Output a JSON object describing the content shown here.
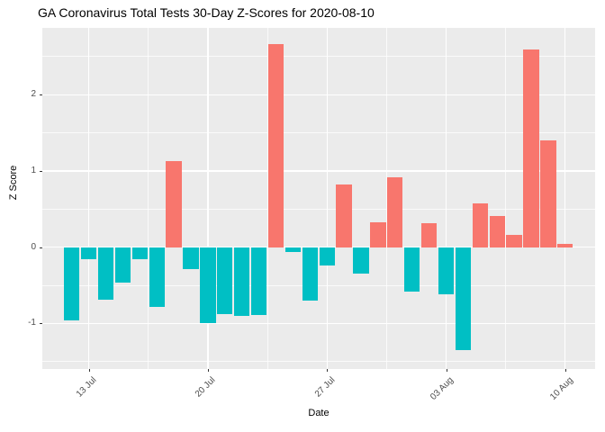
{
  "chart_data": {
    "type": "bar",
    "title": "GA Coronavirus Total Tests 30-Day Z-Scores for 2020-08-10",
    "xlabel": "Date",
    "ylabel": "Z Score",
    "x": [
      "2020-07-12",
      "2020-07-13",
      "2020-07-14",
      "2020-07-15",
      "2020-07-16",
      "2020-07-17",
      "2020-07-18",
      "2020-07-19",
      "2020-07-20",
      "2020-07-21",
      "2020-07-22",
      "2020-07-23",
      "2020-07-24",
      "2020-07-25",
      "2020-07-26",
      "2020-07-27",
      "2020-07-28",
      "2020-07-29",
      "2020-07-30",
      "2020-07-31",
      "2020-08-01",
      "2020-08-02",
      "2020-08-03",
      "2020-08-04",
      "2020-08-05",
      "2020-08-06",
      "2020-08-07",
      "2020-08-08",
      "2020-08-09",
      "2020-08-10"
    ],
    "values": [
      -0.96,
      -0.16,
      -0.69,
      -0.46,
      -0.16,
      -0.78,
      1.13,
      -0.29,
      -1.0,
      -0.88,
      -0.9,
      -0.89,
      2.67,
      -0.06,
      -0.7,
      -0.24,
      0.82,
      -0.35,
      0.33,
      0.92,
      -0.58,
      0.32,
      -0.62,
      -1.35,
      0.58,
      0.41,
      0.16,
      2.59,
      1.4,
      0.04
    ],
    "ylim": [
      -1.6,
      2.88
    ],
    "yticks": [
      -1,
      0,
      1,
      2
    ],
    "ytick_labels": [
      "-1",
      "0",
      "1",
      "2"
    ],
    "yticks_minor": [
      -1.5,
      -0.5,
      0.5,
      1.5,
      2.5
    ],
    "xticks": [
      {
        "index": 1,
        "label": "13 Jul"
      },
      {
        "index": 8,
        "label": "20 Jul"
      },
      {
        "index": 15,
        "label": "27 Jul"
      },
      {
        "index": 22,
        "label": "03 Aug"
      },
      {
        "index": 29,
        "label": "10 Aug"
      }
    ],
    "xticks_minor_index": [
      4.5,
      11.5,
      18.5,
      25.5
    ],
    "legend_position": "none",
    "grid": true,
    "positive_color": "#F8766D",
    "negative_color": "#00BFC4",
    "panel_background": "#EBEBEB",
    "grid_color": "#FFFFFF",
    "axis_text_color": "#4D4D4D",
    "tick_mark_color": "#333333"
  }
}
